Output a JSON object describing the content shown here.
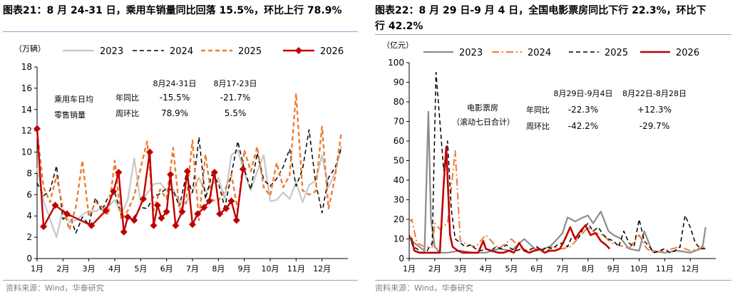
{
  "left": {
    "title": "图表21：8 月 24-31 日，乘用车销量同比回落 15.5%，环比上行 78.9%",
    "source": "资料来源：Wind，华泰研究",
    "chart_data": {
      "type": "line",
      "unit_label": "（万辆）",
      "ylim": [
        0,
        18
      ],
      "yticks": [
        0,
        2,
        4,
        6,
        8,
        10,
        12,
        14,
        16,
        18
      ],
      "xlim": [
        1,
        13
      ],
      "xticks": [
        "1月",
        "2月",
        "3月",
        "4月",
        "5月",
        "6月",
        "7月",
        "8月",
        "9月",
        "10月",
        "11月",
        "12月"
      ],
      "legend": [
        "2023",
        "2024",
        "2025",
        "2026"
      ],
      "colors": {
        "2023": "#c8c8c8",
        "2024": "#000000",
        "2025": "#ed7d31",
        "2026": "#c00000"
      },
      "series": [
        {
          "name": "2023",
          "style": "solid",
          "width": 2.2,
          "x": [
            1,
            1.25,
            1.5,
            1.75,
            2,
            2.25,
            2.5,
            2.75,
            3,
            3.25,
            3.5,
            3.75,
            4,
            4.25,
            4.5,
            4.75,
            5,
            5.25,
            5.5,
            5.75,
            6,
            6.25,
            6.5,
            6.75,
            7,
            7.25,
            7.5,
            7.75,
            8,
            8.25,
            8.5,
            8.75,
            9,
            9.25,
            9.5,
            9.75,
            10,
            10.25,
            10.5,
            10.75,
            11,
            11.25,
            11.5,
            11.75,
            12,
            12.25,
            12.5,
            12.75
          ],
          "values": [
            8.5,
            5.4,
            3.7,
            2.0,
            4.6,
            3.4,
            3.6,
            4.1,
            4.5,
            4.4,
            4.8,
            4.9,
            5.5,
            4.2,
            5.5,
            9.4,
            5.3,
            6.1,
            7.0,
            7.1,
            6.4,
            6.5,
            5.3,
            5.2,
            6.3,
            7.6,
            6.3,
            6.9,
            7.6,
            5.6,
            9.7,
            10.2,
            8.0,
            6.4,
            8.2,
            9.7,
            5.4,
            5.5,
            6.2,
            5.6,
            7.2,
            5.3,
            6.9,
            7.3,
            9.7,
            6.7,
            8.0,
            10.6
          ]
        },
        {
          "name": "2024",
          "style": "dash",
          "width": 1.5,
          "x": [
            1,
            1.25,
            1.5,
            1.75,
            2,
            2.25,
            2.5,
            2.75,
            3,
            3.25,
            3.5,
            3.75,
            4,
            4.25,
            4.5,
            4.75,
            5,
            5.25,
            5.5,
            5.75,
            6,
            6.25,
            6.5,
            6.75,
            7,
            7.25,
            7.5,
            7.75,
            8,
            8.25,
            8.5,
            8.75,
            9,
            9.25,
            9.5,
            9.75,
            10,
            10.25,
            10.5,
            10.75,
            11,
            11.25,
            11.5,
            11.75,
            12,
            12.25,
            12.5,
            12.75
          ],
          "values": [
            7.1,
            5.9,
            6.4,
            8.7,
            3.7,
            4.1,
            2.4,
            3.9,
            3.2,
            5.7,
            4.5,
            5.8,
            6.2,
            4.1,
            3.8,
            3.9,
            4.8,
            4.7,
            5.8,
            6.1,
            6.6,
            6.4,
            4.9,
            7.8,
            6.2,
            11.4,
            5.6,
            7.9,
            7.1,
            4.8,
            7.9,
            11.0,
            8.4,
            6.5,
            9.9,
            7.4,
            6.8,
            7.5,
            8.6,
            10.3,
            6.8,
            8.4,
            12.1,
            7.2,
            4.3,
            7.6,
            8.5,
            10.4
          ]
        },
        {
          "name": "2025",
          "style": "dash",
          "width": 2.4,
          "x": [
            1,
            1.25,
            1.5,
            1.75,
            2,
            2.25,
            2.5,
            2.75,
            3,
            3.25,
            3.5,
            3.75,
            4,
            4.25,
            4.5,
            4.75,
            5,
            5.25,
            5.5,
            5.75,
            6,
            6.25,
            6.5,
            6.75,
            7,
            7.25,
            7.5,
            7.75,
            8,
            8.25,
            8.5,
            8.75,
            9,
            9.25,
            9.5,
            9.75,
            10,
            10.25,
            10.5,
            10.75,
            11,
            11.25,
            11.5,
            11.75,
            12,
            12.25,
            12.5,
            12.75
          ],
          "values": [
            12.0,
            6.7,
            5.3,
            7.8,
            4.7,
            2.7,
            4.9,
            9.2,
            3.9,
            5.3,
            4.9,
            4.1,
            9.2,
            3.6,
            4.5,
            5.9,
            8.5,
            11.0,
            4.5,
            6.5,
            5.6,
            10.4,
            4.6,
            5.2,
            11.1,
            3.6,
            9.8,
            5.5,
            5.4,
            6.4,
            7.9,
            4.5,
            10.2,
            8.2,
            10.5,
            6.7,
            5.9,
            9.0,
            6.7,
            7.8,
            15.5,
            6.4,
            6.0,
            6.3,
            12.4,
            4.7,
            7.6,
            11.9
          ]
        },
        {
          "name": "2026",
          "style": "solid",
          "width": 2.4,
          "marker": "diamond",
          "x": [
            1,
            1.25,
            1.7,
            2.15,
            3.1,
            3.65,
            3.95,
            4.15,
            4.35,
            4.5,
            4.75,
            5.1,
            5.35,
            5.5,
            5.65,
            5.8,
            6,
            6.15,
            6.35,
            6.6,
            6.8,
            7,
            7.2,
            7.45,
            7.65,
            7.85,
            8.05,
            8.3,
            8.5,
            8.7,
            8.95
          ],
          "values": [
            12.2,
            3.0,
            5.0,
            4.2,
            3.1,
            4.5,
            6.3,
            8.1,
            2.5,
            3.9,
            3.6,
            5.6,
            10.0,
            3.1,
            5.0,
            3.8,
            4.4,
            7.9,
            3.1,
            4.4,
            8.2,
            3.2,
            4.2,
            4.8,
            5.4,
            8.1,
            4.2,
            4.7,
            5.4,
            3.6,
            8.4
          ]
        }
      ],
      "table": {
        "col1_header": "8月24-31日",
        "col2_header": "8月17-23日",
        "row_label_1": "乘用车日均",
        "row_label_2": "零售销量",
        "rows": [
          {
            "label": "年同比",
            "v1": "-15.5%",
            "v2": "-21.7%"
          },
          {
            "label": "周环比",
            "v1": "78.9%",
            "v2": "5.5%"
          }
        ]
      }
    }
  },
  "right": {
    "title_line1": "图表22：8 月 29 日-9 月 4 日，全国电影票房同比下行 22.3%，环比下",
    "title_line2": "行 42.2%",
    "source": "资料来源：Wind，华泰研究",
    "chart_data": {
      "type": "line",
      "unit_label": "（亿元）",
      "ylim": [
        0,
        100
      ],
      "yticks": [
        0,
        10,
        20,
        30,
        40,
        50,
        60,
        70,
        80,
        90,
        100
      ],
      "xlim": [
        1,
        13
      ],
      "xticks": [
        "1月",
        "2月",
        "3月",
        "4月",
        "5月",
        "6月",
        "7月",
        "8月",
        "9月",
        "10月",
        "11月",
        "12月"
      ],
      "legend": [
        "2023",
        "2024",
        "2025",
        "2026"
      ],
      "colors": {
        "2023": "#8c8c8c",
        "2024": "#ed7d31",
        "2025": "#000000",
        "2026": "#c00000"
      },
      "series": [
        {
          "name": "2023",
          "style": "solid",
          "width": 2.2,
          "x": [
            1,
            1.4,
            1.6,
            1.75,
            1.85,
            2.0,
            2.2,
            2.5,
            3,
            3.5,
            4,
            4.5,
            5,
            5.5,
            6,
            6.5,
            6.8,
            7,
            7.2,
            7.5,
            7.8,
            8,
            8.2,
            8.5,
            8.8,
            9,
            9.3,
            9.6,
            10,
            10.2,
            10.5,
            11,
            11.5,
            12,
            12.4,
            12.5,
            12.6
          ],
          "values": [
            10,
            6,
            4,
            75,
            20,
            6,
            3,
            3,
            4,
            3,
            3,
            5,
            4,
            10,
            4,
            6,
            10,
            13,
            21,
            19,
            21,
            22,
            18,
            24,
            14,
            12,
            10,
            5,
            4,
            14,
            4,
            3,
            4,
            3,
            5,
            7,
            16
          ]
        },
        {
          "name": "2024",
          "style": "dashdot",
          "width": 2.0,
          "x": [
            1,
            1.1,
            1.3,
            1.6,
            1.9,
            2.0,
            2.2,
            2.5,
            2.8,
            3.0,
            3.3,
            3.6,
            4,
            4.5,
            5,
            5.3,
            5.6,
            6,
            6.3,
            6.6,
            7,
            7.3,
            7.6,
            8,
            8.3,
            8.6,
            8.9,
            9.2,
            9.6,
            10,
            10.3,
            10.6,
            11,
            11.3,
            11.6,
            12,
            12.3,
            12.6
          ],
          "values": [
            19,
            20,
            8,
            6,
            6,
            18,
            15,
            18,
            55,
            9,
            7,
            6,
            12,
            5,
            10,
            6,
            4,
            5,
            3,
            6,
            5,
            6,
            10,
            16,
            13,
            12,
            8,
            7,
            5,
            12,
            5,
            3,
            4,
            5,
            6,
            4,
            5,
            6
          ]
        },
        {
          "name": "2025",
          "style": "dash",
          "width": 1.5,
          "x": [
            1,
            1.15,
            1.3,
            1.5,
            1.7,
            1.9,
            2.05,
            2.2,
            2.35,
            2.5,
            2.65,
            2.8,
            3.0,
            3.2,
            3.4,
            3.6,
            3.8,
            4.0,
            4.2,
            4.4,
            4.6,
            4.8,
            5.0,
            5.2,
            5.4,
            5.6,
            5.8,
            6.0,
            6.2,
            6.4,
            6.6,
            6.8,
            7.0,
            7.2,
            7.4,
            7.6,
            7.8,
            8.0,
            8.2,
            8.4,
            8.6,
            8.8,
            9.0,
            9.2,
            9.4,
            9.6,
            9.8,
            10.0,
            10.2,
            10.4,
            10.6,
            10.8,
            11.0,
            11.2,
            11.4,
            11.6,
            11.8,
            12.0,
            12.2,
            12.4,
            12.6
          ],
          "values": [
            12,
            6,
            5,
            3,
            4,
            8,
            95,
            70,
            45,
            60,
            25,
            10,
            8,
            6,
            7,
            5,
            4,
            5,
            4,
            6,
            5,
            7,
            5,
            4,
            5,
            4,
            5,
            6,
            4,
            6,
            5,
            7,
            8,
            6,
            12,
            10,
            15,
            18,
            14,
            16,
            12,
            10,
            9,
            6,
            14,
            8,
            6,
            20,
            9,
            6,
            3,
            4,
            5,
            3,
            4,
            6,
            22,
            16,
            8,
            5,
            5
          ]
        },
        {
          "name": "2026",
          "style": "solid",
          "width": 2.6,
          "x": [
            1,
            1.1,
            1.2,
            1.4,
            1.6,
            1.8,
            2.0,
            2.2,
            2.35,
            2.45,
            2.6,
            2.7,
            2.9,
            3.1,
            3.3,
            3.5,
            3.7,
            3.9,
            4.0,
            4.2,
            4.5,
            4.7,
            4.9,
            5.1,
            5.3,
            5.5,
            5.7,
            5.9,
            6.1,
            6.3,
            6.5,
            6.7,
            6.9,
            7.1,
            7.3,
            7.5,
            7.7,
            7.9,
            8.1,
            8.3,
            8.5,
            8.7,
            8.85
          ],
          "values": [
            11,
            10,
            4,
            3,
            3,
            3,
            3,
            3,
            38,
            57,
            12,
            6,
            4,
            3,
            3,
            3,
            3,
            9,
            5,
            4,
            3,
            3,
            4,
            3,
            8,
            4,
            3,
            4,
            5,
            3,
            4,
            4,
            5,
            10,
            16,
            10,
            14,
            17,
            12,
            13,
            9,
            7,
            5
          ]
        }
      ],
      "box_label_1": "电影票房",
      "box_label_2": "（滚动七日合计）",
      "table": {
        "col1_header": "8月29日-9月4日",
        "col2_header": "8月22日-8月28日",
        "rows": [
          {
            "label": "年同比",
            "v1": "-22.3%",
            "v2": "+12.3%"
          },
          {
            "label": "周环比",
            "v1": "-42.2%",
            "v2": "-29.7%"
          }
        ]
      }
    }
  }
}
